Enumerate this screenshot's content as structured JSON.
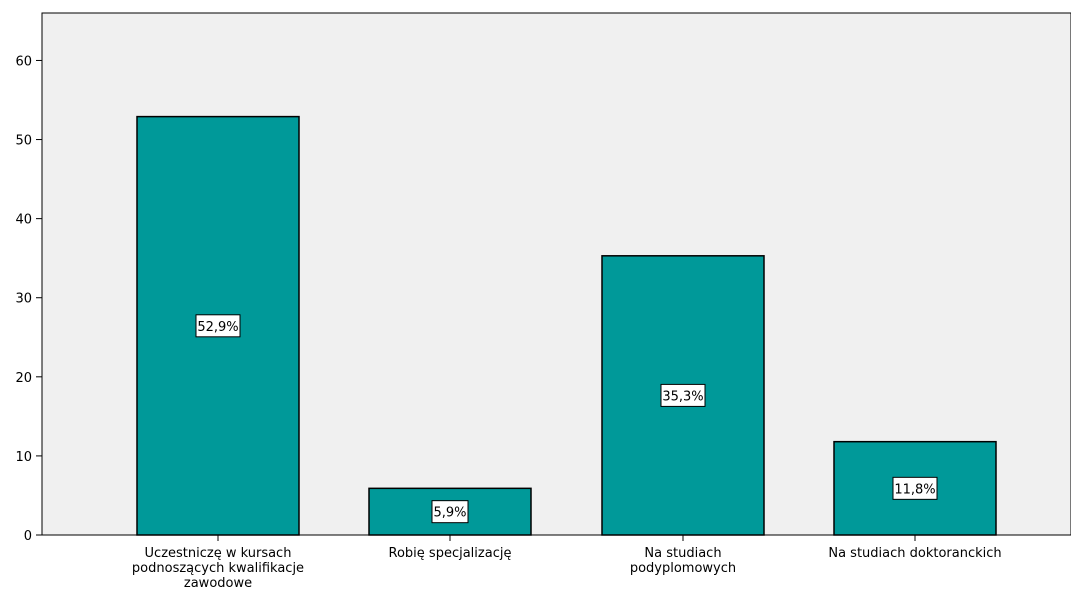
{
  "chart_data": {
    "type": "bar",
    "categories": [
      [
        "Uczestniczę w kursach",
        "podnoszących kwalifikacje",
        "zawodowe"
      ],
      [
        "Robię specjalizację"
      ],
      [
        "Na studiach",
        "podyplomowych"
      ],
      [
        "Na studiach doktoranckich"
      ]
    ],
    "values": [
      52.9,
      5.9,
      35.3,
      11.8
    ],
    "data_labels": [
      "52,9%",
      "5,9%",
      "35,3%",
      "11,8%"
    ],
    "yticks": [
      "0",
      "10",
      "20",
      "30",
      "40",
      "50",
      "60"
    ],
    "ylim": [
      0,
      66
    ],
    "xlabel": "",
    "ylabel": "",
    "title": "",
    "grid": false,
    "colors": {
      "bar_fill": "#009999",
      "bar_stroke": "#000000",
      "plot_background": "#F0F0F0",
      "label_box": "#FFFFFF"
    }
  }
}
